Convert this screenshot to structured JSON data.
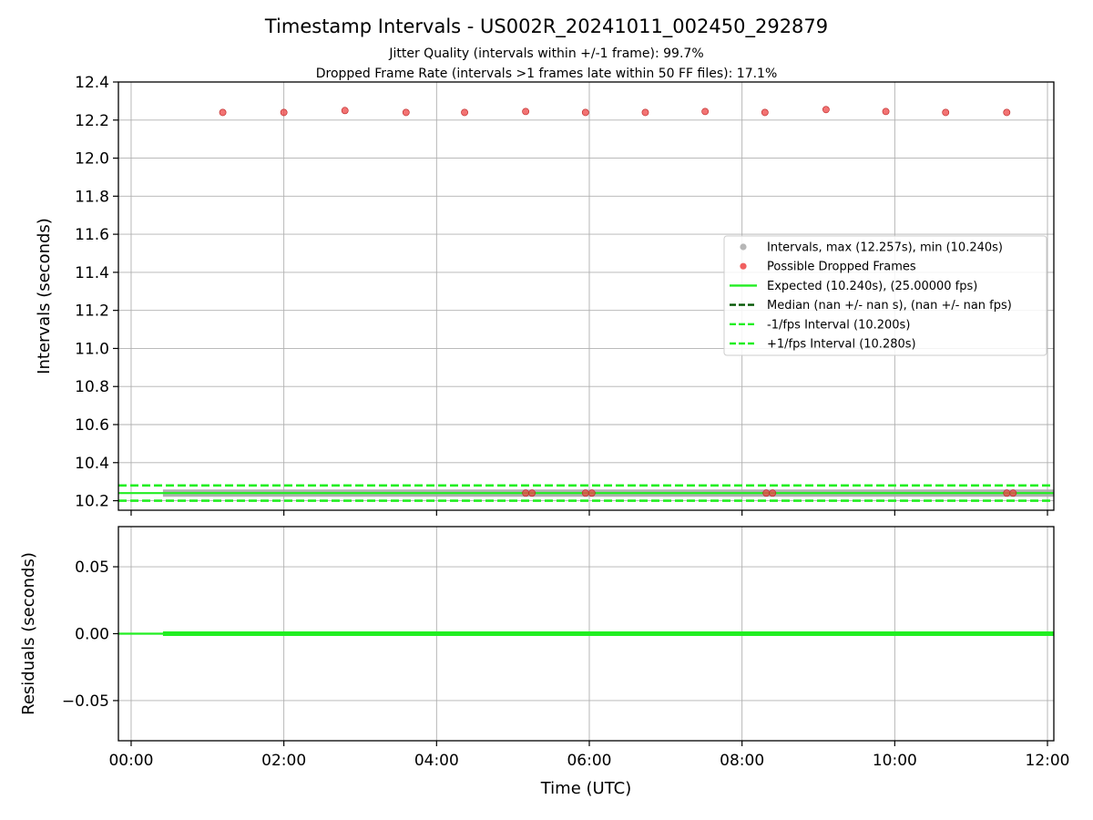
{
  "chart_data": [
    {
      "type": "scatter",
      "title": "Timestamp Intervals - US002R_20241011_002450_292879",
      "subtitle_lines": [
        "Jitter Quality (intervals within +/-1 frame): 99.7%",
        "Dropped Frame Rate (intervals >1 frames late within 50 FF files): 17.1%"
      ],
      "xlabel": "",
      "ylabel": "Intervals (seconds)",
      "xlim": [
        "23:50",
        "12:05"
      ],
      "ylim": [
        10.15,
        12.4
      ],
      "x_ticks": [
        "00:00",
        "02:00",
        "04:00",
        "06:00",
        "08:00",
        "10:00",
        "12:00"
      ],
      "y_ticks": [
        10.2,
        10.4,
        10.6,
        10.8,
        11.0,
        11.2,
        11.4,
        11.6,
        11.8,
        12.0,
        12.2,
        12.4
      ],
      "y_tick_labels": [
        "10.2",
        "10.4",
        "10.6",
        "10.8",
        "11.0",
        "11.2",
        "11.4",
        "11.6",
        "11.8",
        "12.0",
        "12.2",
        "12.4"
      ],
      "grid": true,
      "legend_position": "center-right",
      "legend": [
        {
          "label": "Intervals, max (12.257s), min (10.240s)",
          "kind": "marker",
          "color": "#a9a9a9"
        },
        {
          "label": "Possible Dropped Frames",
          "kind": "marker",
          "color": "#ee4444"
        },
        {
          "label": "Expected (10.240s), (25.00000 fps)",
          "kind": "solid",
          "color": "#22ee22"
        },
        {
          "label": "Median (nan +/- nan s), (nan +/- nan fps)",
          "kind": "dashed",
          "color": "#005500"
        },
        {
          "label": "-1/fps Interval (10.200s)",
          "kind": "dashed",
          "color": "#22ee22"
        },
        {
          "label": "+1/fps Interval (10.280s)",
          "kind": "dashed",
          "color": "#22ee22"
        }
      ],
      "series": [
        {
          "name": "Intervals, max (12.257s), min (10.240s)",
          "kind": "band",
          "x": [
            "00:25",
            "12:05"
          ],
          "y": [
            10.24,
            10.24
          ],
          "color": "#a9a9a9"
        },
        {
          "name": "Possible Dropped Frames",
          "kind": "scatter",
          "color": "#ee4444",
          "x": [
            "01:12",
            "02:00",
            "02:48",
            "03:36",
            "04:22",
            "05:10",
            "05:57",
            "06:44",
            "07:31",
            "08:18",
            "09:06",
            "09:53",
            "10:40",
            "11:28",
            "05:10",
            "05:15",
            "05:57",
            "06:02",
            "08:19",
            "08:24",
            "11:28",
            "11:33"
          ],
          "y": [
            12.24,
            12.24,
            12.25,
            12.24,
            12.24,
            12.245,
            12.24,
            12.24,
            12.245,
            12.24,
            12.255,
            12.245,
            12.24,
            12.24,
            10.24,
            10.24,
            10.24,
            10.24,
            10.24,
            10.24,
            10.24,
            10.24
          ]
        },
        {
          "name": "Expected (10.240s), (25.00000 fps)",
          "kind": "line",
          "x": [
            "23:50",
            "12:05"
          ],
          "y": [
            10.24,
            10.24
          ],
          "color": "#22ee22"
        },
        {
          "name": "-1/fps Interval (10.200s)",
          "kind": "dashed",
          "x": [
            "23:50",
            "12:05"
          ],
          "y": [
            10.2,
            10.2
          ],
          "color": "#22ee22"
        },
        {
          "name": "+1/fps Interval (10.280s)",
          "kind": "dashed",
          "x": [
            "23:50",
            "12:05"
          ],
          "y": [
            10.28,
            10.28
          ],
          "color": "#22ee22"
        }
      ]
    },
    {
      "type": "line",
      "title": "",
      "xlabel": "Time (UTC)",
      "ylabel": "Residuals (seconds)",
      "xlim": [
        "23:50",
        "12:05"
      ],
      "ylim": [
        -0.08,
        0.08
      ],
      "x_ticks": [
        "00:00",
        "02:00",
        "04:00",
        "06:00",
        "08:00",
        "10:00",
        "12:00"
      ],
      "y_ticks": [
        0.05,
        0.0,
        -0.05
      ],
      "y_tick_labels": [
        "0.05",
        "0.00",
        "−0.05"
      ],
      "grid": true,
      "series": [
        {
          "name": "residual-baseline",
          "kind": "line",
          "x": [
            "23:50",
            "12:05"
          ],
          "y": [
            0.0,
            0.0
          ],
          "color": "#22ee22"
        },
        {
          "name": "residual-band",
          "kind": "band",
          "x": [
            "00:25",
            "12:05"
          ],
          "y": [
            0.0,
            0.0
          ],
          "color": "#22ee22"
        }
      ]
    }
  ]
}
